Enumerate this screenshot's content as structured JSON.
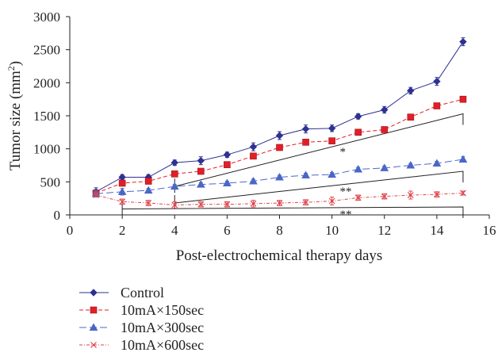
{
  "chart_data": {
    "type": "line",
    "xlabel": "Post-electrochemical therapy days",
    "ylabel": "Tumor size (mm",
    "ylabel_sup": "2",
    "ylabel_end": ")",
    "xlim": [
      0,
      16
    ],
    "ylim": [
      0,
      3000
    ],
    "xticks": [
      0,
      2,
      4,
      6,
      8,
      10,
      12,
      14,
      16
    ],
    "yticks": [
      0,
      500,
      1000,
      1500,
      2000,
      2500,
      3000
    ],
    "grid": false,
    "legend_position": "bottom-left, below plot",
    "x": [
      1,
      2,
      3,
      4,
      5,
      6,
      7,
      8,
      9,
      10,
      11,
      12,
      13,
      14,
      15
    ],
    "series": [
      {
        "name": "Control",
        "color": "#2e3192",
        "marker": "diamond",
        "dash": "solid",
        "values": [
          350,
          570,
          570,
          790,
          820,
          910,
          1030,
          1200,
          1300,
          1310,
          1490,
          1590,
          1880,
          2020,
          2620
        ],
        "errors": [
          60,
          40,
          40,
          40,
          60,
          40,
          60,
          60,
          60,
          50,
          40,
          50,
          50,
          60,
          60
        ]
      },
      {
        "name": "10mA×150sec",
        "color": "#e41e26",
        "marker": "square",
        "dash": "dashed",
        "values": [
          330,
          480,
          510,
          620,
          660,
          760,
          890,
          1020,
          1100,
          1120,
          1250,
          1290,
          1480,
          1650,
          1750
        ],
        "errors": [
          40,
          30,
          30,
          30,
          30,
          30,
          30,
          30,
          30,
          30,
          30,
          30,
          30,
          40,
          40
        ]
      },
      {
        "name": "10mA×300sec",
        "color": "#4a67c8",
        "marker": "triangle",
        "dash": "longdash",
        "values": [
          320,
          350,
          370,
          430,
          460,
          480,
          510,
          570,
          600,
          610,
          690,
          710,
          750,
          780,
          840
        ],
        "errors": [
          40,
          50,
          30,
          30,
          30,
          30,
          30,
          30,
          30,
          30,
          30,
          30,
          30,
          30,
          40
        ]
      },
      {
        "name": "10mA×600sec",
        "color": "#e0424a",
        "marker": "x",
        "dash": "dashdot",
        "values": [
          300,
          200,
          180,
          150,
          160,
          160,
          170,
          180,
          190,
          210,
          260,
          280,
          300,
          310,
          330
        ],
        "errors": [
          30,
          40,
          40,
          50,
          40,
          40,
          50,
          40,
          40,
          60,
          40,
          40,
          60,
          40,
          30
        ]
      }
    ],
    "annotations": [
      {
        "text": "*",
        "x": 10.3,
        "y": 960
      },
      {
        "text": "**",
        "x": 10.3,
        "y": 360
      },
      {
        "text": "**",
        "x": 10.3,
        "y": 15
      }
    ],
    "brackets": [
      {
        "from_x": 4,
        "to_x": 15,
        "low": 430,
        "high": 1530
      },
      {
        "from_x": 4,
        "to_x": 15,
        "low": 180,
        "high": 660
      },
      {
        "from_x": 2,
        "to_x": 15,
        "low": 90,
        "high": 120
      }
    ]
  }
}
